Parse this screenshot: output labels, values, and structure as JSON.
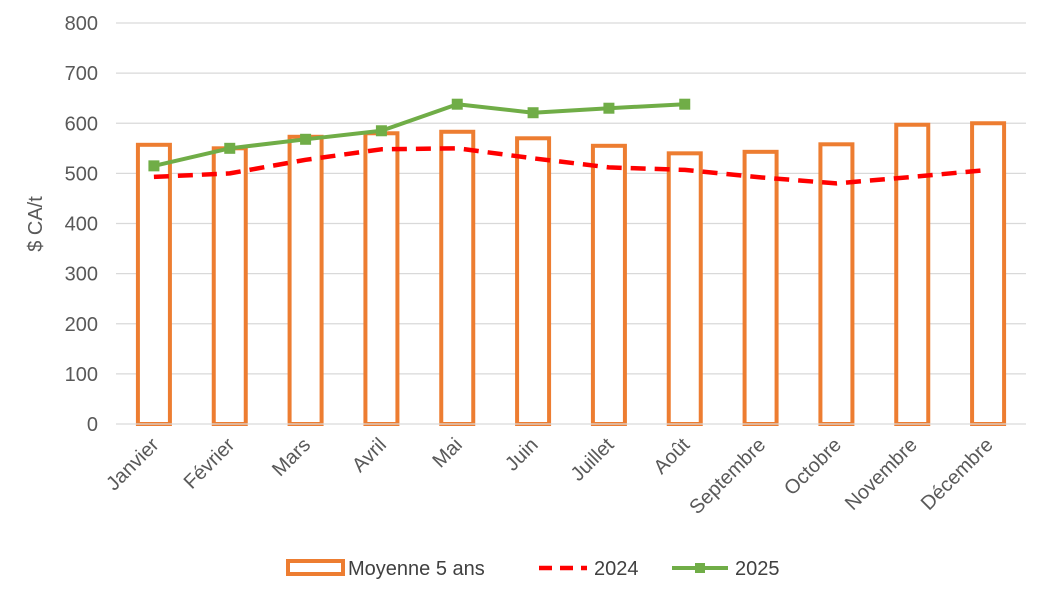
{
  "chart_data": {
    "type": "bar",
    "ylabel": "$ CA/t",
    "xlabel": "",
    "ylim": [
      0,
      800
    ],
    "y_ticks": [
      "0",
      "100",
      "200",
      "300",
      "400",
      "500",
      "600",
      "700",
      "800"
    ],
    "grid": true,
    "legend_position": "bottom",
    "categories": [
      "Janvier",
      "Février",
      "Mars",
      "Avril",
      "Mai",
      "Juin",
      "Juillet",
      "Août",
      "Septembre",
      "Octobre",
      "Novembre",
      "Décembre"
    ],
    "series": [
      {
        "name": "Moyenne 5 ans",
        "kind": "bar",
        "style": "outline",
        "color": "#ED7D31",
        "values": [
          557,
          550,
          573,
          580,
          583,
          570,
          555,
          540,
          543,
          558,
          597,
          600
        ]
      },
      {
        "name": "2024",
        "kind": "line",
        "style": "dashed",
        "color": "#FF0000",
        "values": [
          493,
          500,
          527,
          548,
          550,
          530,
          512,
          507,
          492,
          480,
          493,
          507
        ]
      },
      {
        "name": "2025",
        "kind": "line",
        "style": "solid-with-markers",
        "color": "#70AD47",
        "values": [
          515,
          550,
          568,
          585,
          638,
          621,
          630,
          638,
          null,
          null,
          null,
          null
        ]
      }
    ]
  }
}
